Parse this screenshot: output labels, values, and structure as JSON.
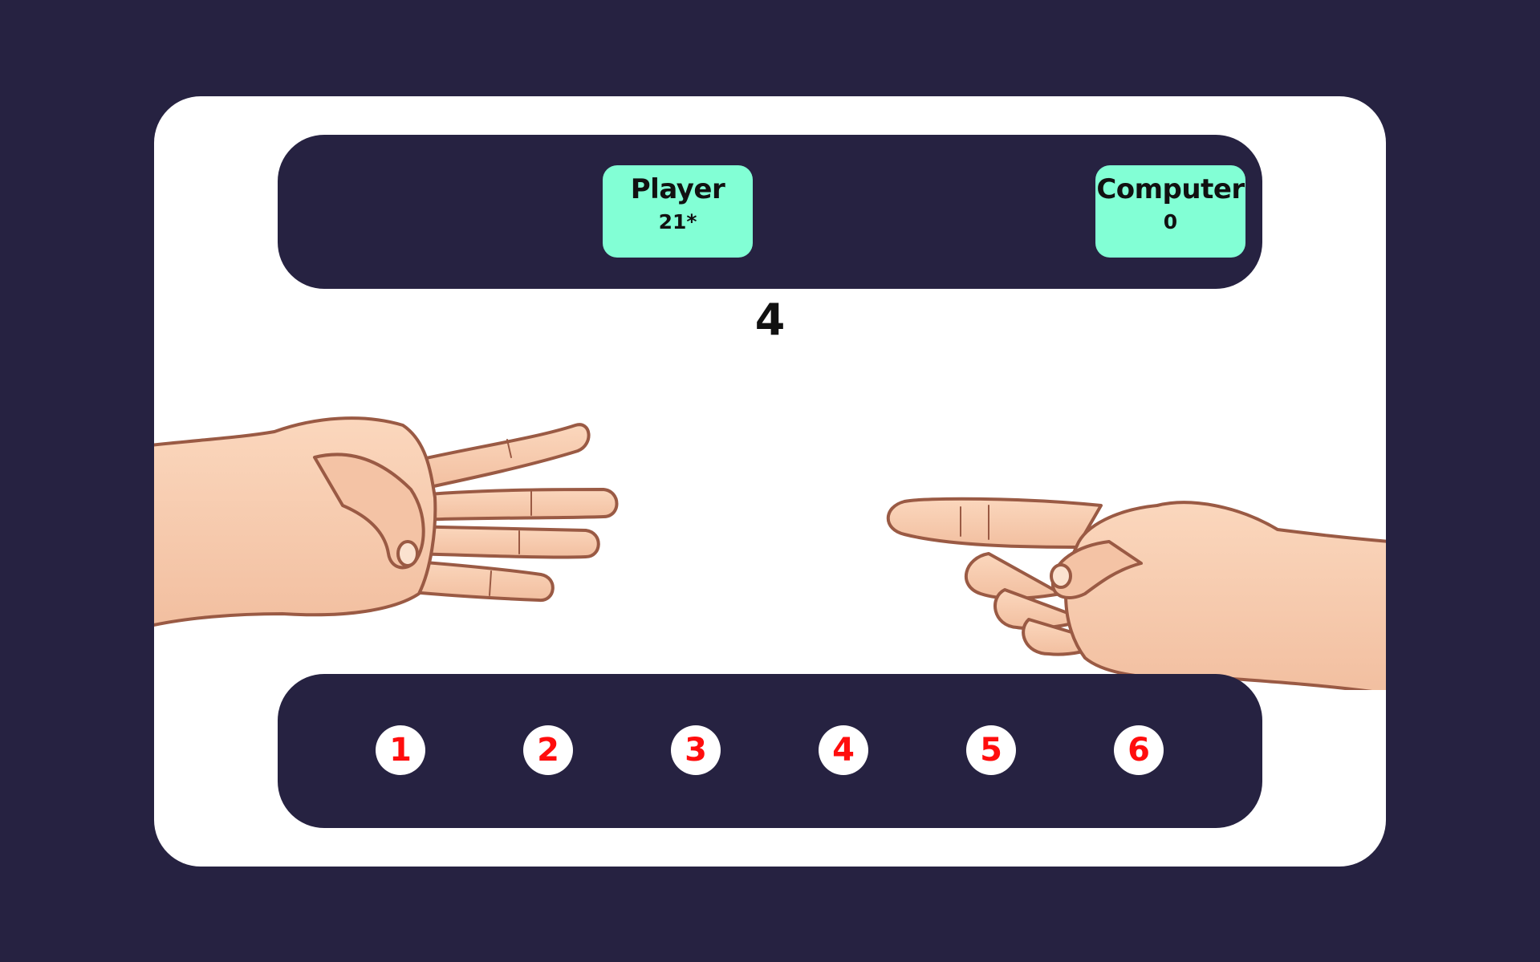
{
  "scoreboard": {
    "player": {
      "label": "Player",
      "score": "21*"
    },
    "computer": {
      "label": "Computer",
      "score": "0"
    }
  },
  "round": {
    "result": "4"
  },
  "hands": {
    "player_fingers": 4,
    "computer_fingers": 1
  },
  "choices": [
    "1",
    "2",
    "3",
    "4",
    "5",
    "6"
  ],
  "colors": {
    "background": "#262241",
    "card": "#ffffff",
    "score_box": "#82ffd5",
    "choice_text": "#ff0d0d",
    "skin": "#f8cdb0",
    "skin_outline": "#9a5a44"
  }
}
